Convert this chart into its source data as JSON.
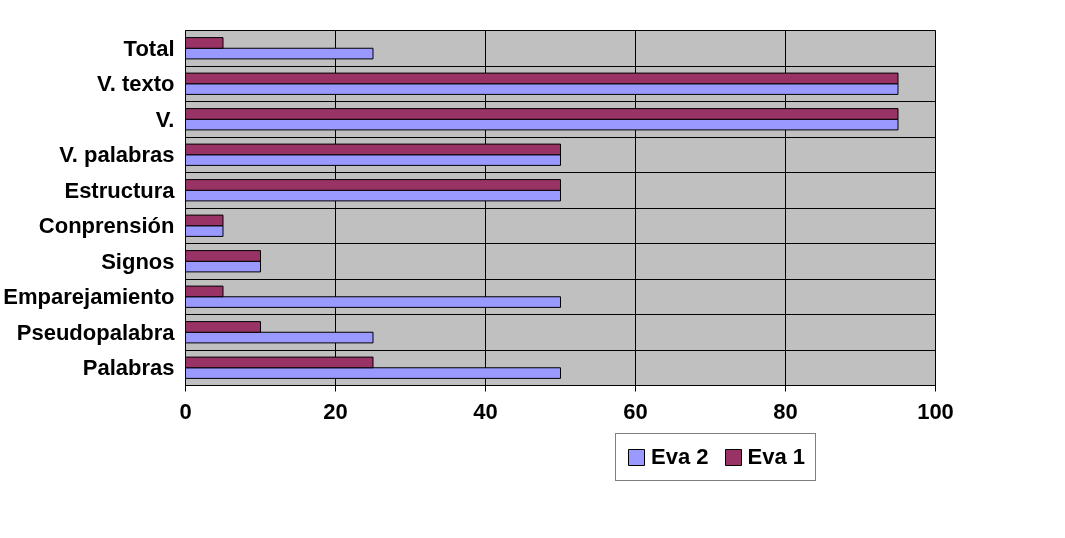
{
  "chart_data": {
    "type": "bar",
    "orientation": "horizontal",
    "categories": [
      "Total",
      "V. texto",
      "V.",
      "V. palabras",
      "Estructura",
      "Conprensión",
      "Signos",
      "Emparejamiento",
      "Pseudopalabra",
      "Palabras"
    ],
    "series": [
      {
        "name": "Eva 2",
        "color": "#9999ff",
        "values": [
          25,
          95,
          95,
          50,
          50,
          5,
          10,
          50,
          25,
          50
        ]
      },
      {
        "name": "Eva 1",
        "color": "#993366",
        "values": [
          5,
          95,
          95,
          50,
          50,
          5,
          10,
          5,
          10,
          25
        ]
      }
    ],
    "xlim": [
      0,
      100
    ],
    "xticks": [
      0,
      20,
      40,
      60,
      80,
      100
    ],
    "grid": true,
    "legend": "bottom"
  }
}
